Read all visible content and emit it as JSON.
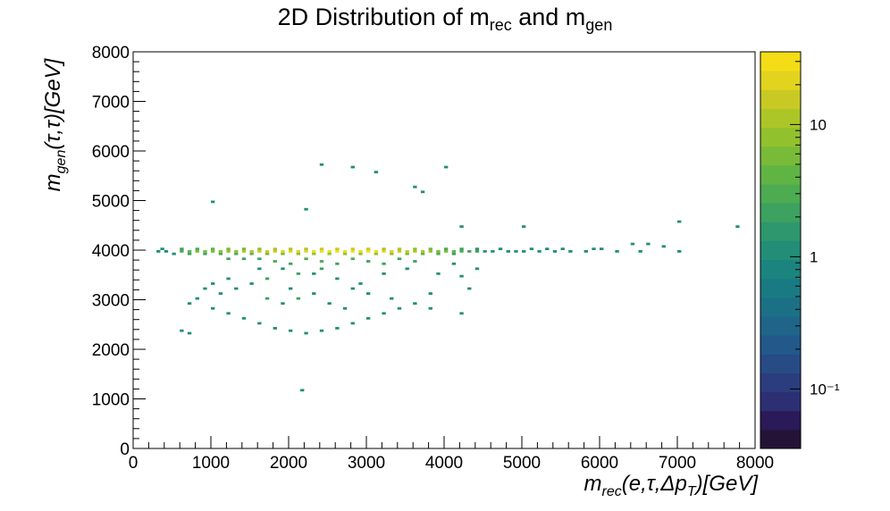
{
  "title": {
    "main": "2D Distribution of m",
    "sub1": "rec",
    "mid": " and m",
    "sub2": "gen"
  },
  "axes": {
    "x": {
      "label_pre": "m",
      "label_sub": "rec",
      "label_post": "(e,τ,Δp",
      "label_sub2": "T",
      "label_end": ")[GeV]",
      "ticks": [
        "0",
        "1000",
        "2000",
        "3000",
        "4000",
        "5000",
        "6000",
        "7000",
        "8000"
      ]
    },
    "y": {
      "label_pre": "m",
      "label_sub": "gen",
      "label_post": "(τ,τ)[GeV]",
      "ticks": [
        "0",
        "1000",
        "2000",
        "3000",
        "4000",
        "5000",
        "6000",
        "7000",
        "8000"
      ]
    }
  },
  "colorbar": {
    "ticks": [
      {
        "label": "10",
        "value": 10
      },
      {
        "label": "1",
        "value": 1
      },
      {
        "label": "10⁻¹",
        "value": 0.1
      }
    ],
    "colors": [
      "#241337",
      "#2a1a57",
      "#2c2f73",
      "#2b3d7e",
      "#274b85",
      "#22588a",
      "#1f6589",
      "#1c7086",
      "#1a7a83",
      "#1c847e",
      "#238d77",
      "#2f976d",
      "#3da160",
      "#4dab52",
      "#60b444",
      "#78bb38",
      "#92c12e",
      "#adc627",
      "#c8ca23",
      "#e2d31e",
      "#f4dc17"
    ],
    "range_log10": [
      -1.45,
      1.55
    ]
  },
  "chart_data": {
    "type": "heatmap",
    "x_range": [
      0,
      8000
    ],
    "y_range": [
      0,
      8000
    ],
    "bin_width": 50,
    "scale": "log",
    "description_note": "",
    "core": {
      "x_range": [
        300,
        5000
      ],
      "y_center": 3980,
      "peak_x": 2800,
      "peak_value": 30
    },
    "bins": [
      [
        600,
        3950,
        3
      ],
      [
        700,
        3950,
        4
      ],
      [
        800,
        3950,
        5
      ],
      [
        900,
        3950,
        6
      ],
      [
        1000,
        3950,
        6
      ],
      [
        1100,
        3950,
        7
      ],
      [
        1200,
        3950,
        8
      ],
      [
        1300,
        3950,
        9
      ],
      [
        1400,
        3950,
        10
      ],
      [
        1500,
        3950,
        12
      ],
      [
        1600,
        3950,
        14
      ],
      [
        1700,
        3950,
        16
      ],
      [
        1800,
        3950,
        18
      ],
      [
        1900,
        3950,
        20
      ],
      [
        2000,
        3950,
        22
      ],
      [
        2100,
        3950,
        24
      ],
      [
        2200,
        3950,
        25
      ],
      [
        2300,
        3950,
        27
      ],
      [
        2400,
        3950,
        28
      ],
      [
        2500,
        3950,
        29
      ],
      [
        2600,
        3950,
        30
      ],
      [
        2700,
        3950,
        30
      ],
      [
        2800,
        3950,
        30
      ],
      [
        2900,
        3950,
        29
      ],
      [
        3000,
        3950,
        28
      ],
      [
        3100,
        3950,
        26
      ],
      [
        3200,
        3950,
        24
      ],
      [
        3300,
        3950,
        21
      ],
      [
        3400,
        3950,
        18
      ],
      [
        3500,
        3950,
        15
      ],
      [
        3600,
        3950,
        12
      ],
      [
        3700,
        3950,
        10
      ],
      [
        3800,
        3950,
        8
      ],
      [
        3900,
        3950,
        6
      ],
      [
        4000,
        3950,
        5
      ],
      [
        4100,
        3950,
        4
      ],
      [
        4200,
        3950,
        3
      ],
      [
        4300,
        3950,
        2
      ],
      [
        4400,
        3950,
        2
      ],
      [
        4500,
        3950,
        1.5
      ],
      [
        600,
        4000,
        2
      ],
      [
        800,
        4000,
        3
      ],
      [
        1000,
        4000,
        4
      ],
      [
        1200,
        4000,
        5
      ],
      [
        1400,
        4000,
        6
      ],
      [
        1600,
        4000,
        8
      ],
      [
        1800,
        4000,
        10
      ],
      [
        2000,
        4000,
        12
      ],
      [
        2200,
        4000,
        13
      ],
      [
        2400,
        4000,
        14
      ],
      [
        2600,
        4000,
        15
      ],
      [
        2800,
        4000,
        15
      ],
      [
        3000,
        4000,
        14
      ],
      [
        3200,
        4000,
        13
      ],
      [
        3400,
        4000,
        10
      ],
      [
        3600,
        4000,
        8
      ],
      [
        3800,
        4000,
        5
      ],
      [
        4000,
        4000,
        3
      ],
      [
        4200,
        4000,
        2
      ],
      [
        4400,
        4000,
        1.5
      ],
      [
        700,
        3900,
        2
      ],
      [
        900,
        3900,
        2
      ],
      [
        1100,
        3900,
        3
      ],
      [
        1300,
        3900,
        3
      ],
      [
        1500,
        3900,
        4
      ],
      [
        1700,
        3900,
        5
      ],
      [
        1900,
        3900,
        6
      ],
      [
        2100,
        3900,
        7
      ],
      [
        2300,
        3900,
        8
      ],
      [
        2500,
        3900,
        8
      ],
      [
        2700,
        3900,
        9
      ],
      [
        2900,
        3900,
        9
      ],
      [
        3100,
        3900,
        8
      ],
      [
        3300,
        3900,
        7
      ],
      [
        3500,
        3900,
        6
      ],
      [
        3700,
        3900,
        4
      ],
      [
        3900,
        3900,
        3
      ],
      [
        4100,
        3900,
        2
      ],
      [
        400,
        3950,
        1
      ],
      [
        350,
        4000,
        1
      ],
      [
        300,
        3950,
        1
      ],
      [
        500,
        3900,
        1
      ],
      [
        4600,
        3950,
        1
      ],
      [
        4700,
        4000,
        1
      ],
      [
        4800,
        3950,
        1
      ],
      [
        4900,
        3950,
        1
      ],
      [
        5000,
        3950,
        1
      ],
      [
        5100,
        4000,
        1
      ],
      [
        5200,
        3950,
        1
      ],
      [
        5400,
        3950,
        1
      ],
      [
        5500,
        4000,
        1
      ],
      [
        5600,
        3950,
        1
      ],
      [
        5800,
        3950,
        1
      ],
      [
        6000,
        4000,
        1
      ],
      [
        6200,
        3950,
        1
      ],
      [
        6500,
        3950,
        1
      ],
      [
        6600,
        4100,
        1
      ],
      [
        6800,
        4050,
        1
      ],
      [
        7000,
        3950,
        1
      ],
      [
        6400,
        4100,
        1
      ],
      [
        5900,
        4000,
        1
      ],
      [
        5300,
        4000,
        1
      ],
      [
        2400,
        5700,
        1
      ],
      [
        2800,
        5650,
        1
      ],
      [
        4000,
        5650,
        1
      ],
      [
        3100,
        5550,
        1
      ],
      [
        3600,
        5250,
        1
      ],
      [
        3700,
        5150,
        1
      ],
      [
        1000,
        4950,
        1
      ],
      [
        2200,
        4800,
        1
      ],
      [
        7000,
        4550,
        1
      ],
      [
        7750,
        4450,
        1
      ],
      [
        5000,
        4450,
        1
      ],
      [
        4200,
        4450,
        1
      ],
      [
        1200,
        3800,
        2
      ],
      [
        1400,
        3800,
        2
      ],
      [
        1600,
        3800,
        2
      ],
      [
        1800,
        3750,
        3
      ],
      [
        2000,
        3700,
        2
      ],
      [
        2200,
        3800,
        3
      ],
      [
        2400,
        3750,
        3
      ],
      [
        2600,
        3700,
        2
      ],
      [
        2800,
        3800,
        3
      ],
      [
        3000,
        3750,
        2
      ],
      [
        3200,
        3700,
        2
      ],
      [
        3400,
        3800,
        2
      ],
      [
        3600,
        3750,
        2
      ],
      [
        1900,
        3600,
        1
      ],
      [
        2300,
        3500,
        1
      ],
      [
        2600,
        3400,
        1
      ],
      [
        2900,
        3300,
        1
      ],
      [
        3200,
        3500,
        1
      ],
      [
        3500,
        3600,
        1
      ],
      [
        4400,
        3600,
        1
      ],
      [
        3900,
        3500,
        1
      ],
      [
        4200,
        3450,
        1
      ],
      [
        2400,
        3600,
        2
      ],
      [
        2100,
        3500,
        2
      ],
      [
        1700,
        3400,
        2
      ],
      [
        1500,
        3300,
        1
      ],
      [
        1300,
        3200,
        1
      ],
      [
        1100,
        3100,
        1
      ],
      [
        800,
        3000,
        1
      ],
      [
        700,
        2900,
        1
      ],
      [
        1000,
        2800,
        1
      ],
      [
        1200,
        2700,
        1
      ],
      [
        1400,
        2600,
        1
      ],
      [
        1600,
        2500,
        1
      ],
      [
        1800,
        2400,
        1
      ],
      [
        2000,
        2350,
        1
      ],
      [
        2200,
        2300,
        1
      ],
      [
        2400,
        2350,
        1
      ],
      [
        2600,
        2400,
        1
      ],
      [
        2800,
        2500,
        1
      ],
      [
        3000,
        2600,
        1
      ],
      [
        3200,
        2700,
        1
      ],
      [
        3400,
        2800,
        1
      ],
      [
        3600,
        2900,
        1
      ],
      [
        1700,
        3000,
        2
      ],
      [
        1900,
        2900,
        1
      ],
      [
        2100,
        3000,
        2
      ],
      [
        2300,
        3100,
        1
      ],
      [
        2500,
        2900,
        1
      ],
      [
        2700,
        2800,
        1
      ],
      [
        900,
        3200,
        1
      ],
      [
        1000,
        3300,
        1
      ],
      [
        1600,
        3600,
        1
      ],
      [
        1200,
        3400,
        1
      ],
      [
        2000,
        3200,
        1
      ],
      [
        2800,
        3200,
        1
      ],
      [
        3000,
        3100,
        1
      ],
      [
        3300,
        3000,
        1
      ],
      [
        3800,
        3100,
        1
      ],
      [
        4300,
        3200,
        1
      ],
      [
        2150,
        1150,
        1
      ],
      [
        600,
        2350,
        1
      ],
      [
        700,
        2300,
        1
      ],
      [
        3800,
        2800,
        1
      ],
      [
        4200,
        2700,
        1
      ],
      [
        4100,
        3700,
        1
      ]
    ]
  }
}
